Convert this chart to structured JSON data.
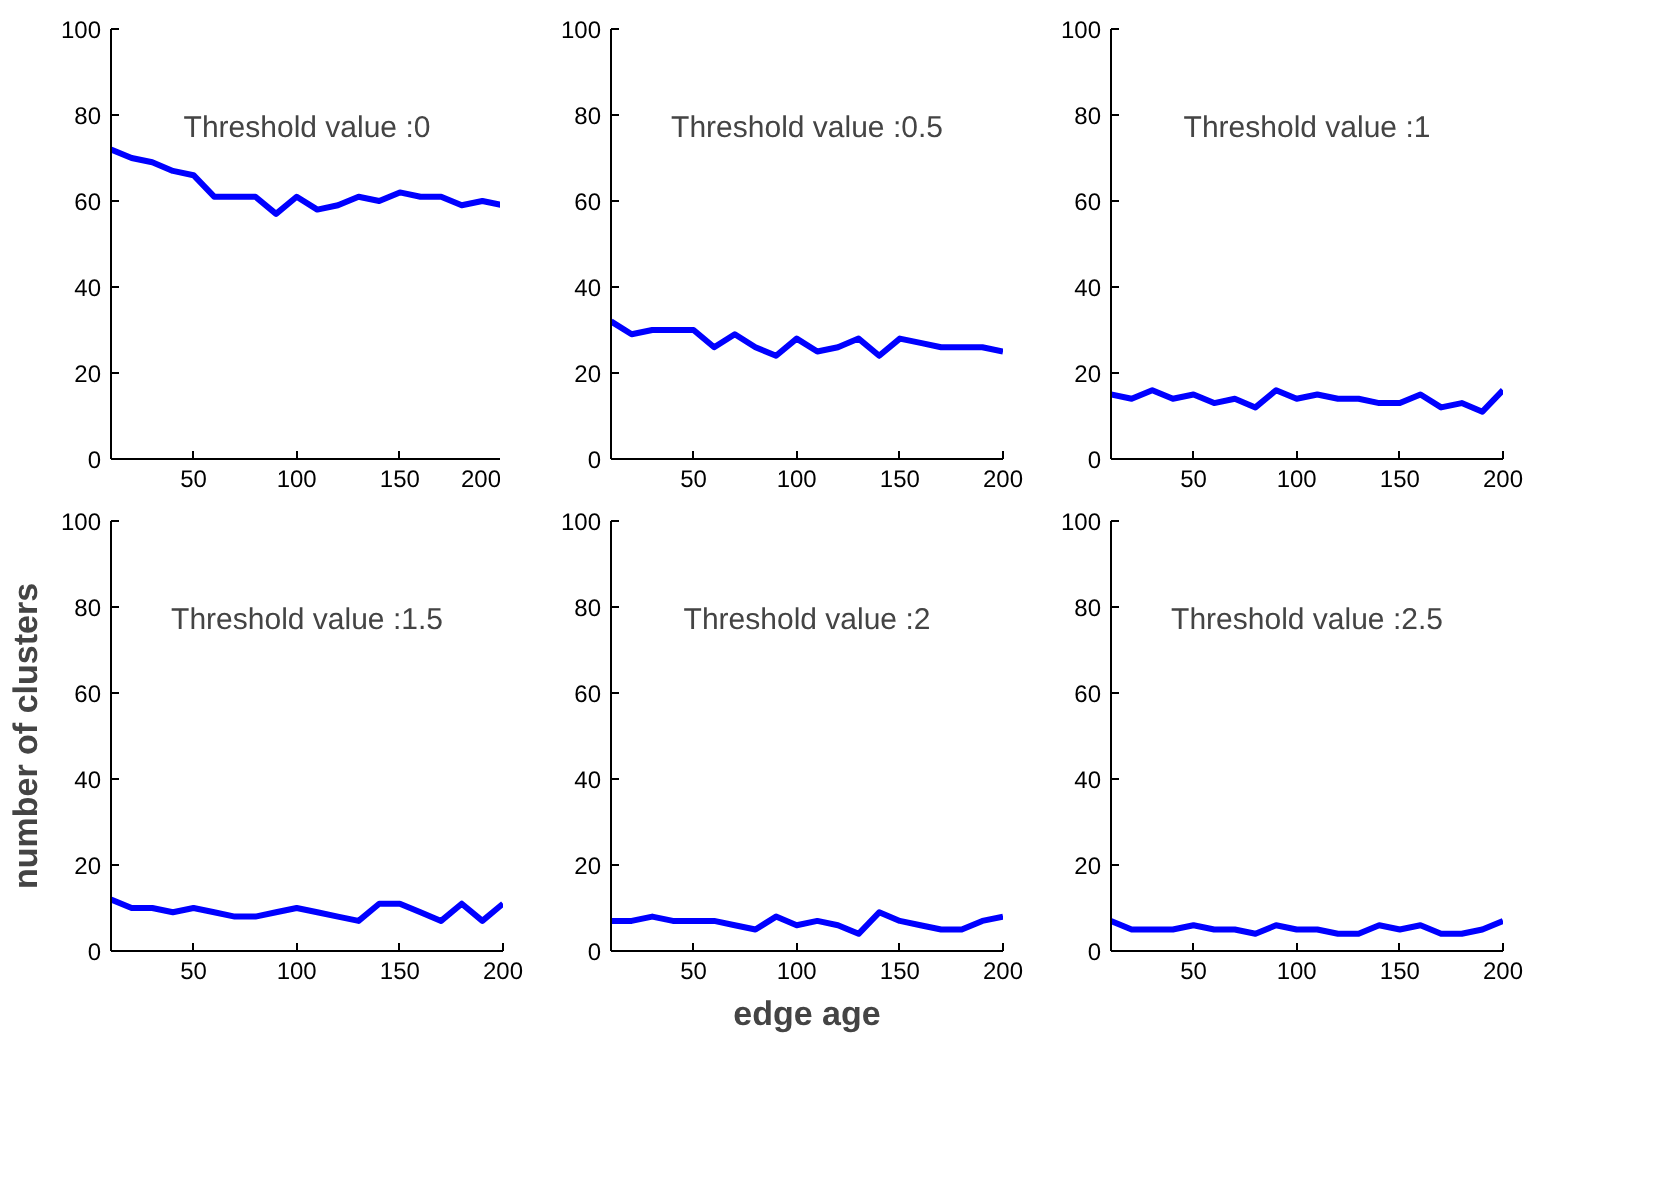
{
  "chart_data": [
    {
      "type": "line",
      "annotations": [
        "Threshold value :0"
      ],
      "x": [
        10,
        20,
        30,
        40,
        50,
        60,
        70,
        80,
        90,
        100,
        110,
        120,
        130,
        140,
        150,
        160,
        170,
        180,
        190,
        200
      ],
      "series": [
        {
          "color": "#0000ff",
          "values": [
            72,
            70,
            69,
            67,
            66,
            61,
            61,
            61,
            57,
            61,
            58,
            59,
            61,
            60,
            62,
            61,
            61,
            59,
            60,
            59
          ]
        }
      ],
      "xlim": [
        10,
        200
      ],
      "ylim": [
        0,
        100
      ],
      "xticks": [
        50,
        100,
        150,
        200
      ],
      "yticks": [
        0,
        20,
        40,
        60,
        80,
        100
      ]
    },
    {
      "type": "line",
      "annotations": [
        "Threshold value :0.5"
      ],
      "x": [
        10,
        20,
        30,
        40,
        50,
        60,
        70,
        80,
        90,
        100,
        110,
        120,
        130,
        140,
        150,
        160,
        170,
        180,
        190,
        200
      ],
      "series": [
        {
          "color": "#0000ff",
          "values": [
            32,
            29,
            30,
            30,
            30,
            26,
            29,
            26,
            24,
            28,
            25,
            26,
            28,
            24,
            28,
            27,
            26,
            26,
            26,
            25
          ]
        }
      ],
      "xlim": [
        10,
        200
      ],
      "ylim": [
        0,
        100
      ],
      "xticks": [
        50,
        100,
        150,
        200
      ],
      "yticks": [
        0,
        20,
        40,
        60,
        80,
        100
      ]
    },
    {
      "type": "line",
      "annotations": [
        "Threshold value :1"
      ],
      "x": [
        10,
        20,
        30,
        40,
        50,
        60,
        70,
        80,
        90,
        100,
        110,
        120,
        130,
        140,
        150,
        160,
        170,
        180,
        190,
        200
      ],
      "series": [
        {
          "color": "#0000ff",
          "values": [
            15,
            14,
            16,
            14,
            15,
            13,
            14,
            12,
            16,
            14,
            15,
            14,
            14,
            13,
            13,
            15,
            12,
            13,
            11,
            16
          ]
        }
      ],
      "xlim": [
        10,
        200
      ],
      "ylim": [
        0,
        100
      ],
      "xticks": [
        50,
        100,
        150,
        200
      ],
      "yticks": [
        0,
        20,
        40,
        60,
        80,
        100
      ]
    },
    {
      "type": "line",
      "ylabel": "number of clusters",
      "annotations": [
        "Threshold value :1.5"
      ],
      "x": [
        10,
        20,
        30,
        40,
        50,
        60,
        70,
        80,
        90,
        100,
        110,
        120,
        130,
        140,
        150,
        160,
        170,
        180,
        190,
        200
      ],
      "series": [
        {
          "color": "#0000ff",
          "values": [
            12,
            10,
            10,
            9,
            10,
            9,
            8,
            8,
            9,
            10,
            9,
            8,
            7,
            11,
            11,
            9,
            7,
            11,
            7,
            11
          ]
        }
      ],
      "xlim": [
        10,
        200
      ],
      "ylim": [
        0,
        100
      ],
      "xticks": [
        50,
        100,
        150,
        200
      ],
      "yticks": [
        0,
        20,
        40,
        60,
        80,
        100
      ]
    },
    {
      "type": "line",
      "xlabel": "edge age",
      "annotations": [
        "Threshold value :2"
      ],
      "x": [
        10,
        20,
        30,
        40,
        50,
        60,
        70,
        80,
        90,
        100,
        110,
        120,
        130,
        140,
        150,
        160,
        170,
        180,
        190,
        200
      ],
      "series": [
        {
          "color": "#0000ff",
          "values": [
            7,
            7,
            8,
            7,
            7,
            7,
            6,
            5,
            8,
            6,
            7,
            6,
            4,
            9,
            7,
            6,
            5,
            5,
            7,
            8
          ]
        }
      ],
      "xlim": [
        10,
        200
      ],
      "ylim": [
        0,
        100
      ],
      "xticks": [
        50,
        100,
        150,
        200
      ],
      "yticks": [
        0,
        20,
        40,
        60,
        80,
        100
      ]
    },
    {
      "type": "line",
      "annotations": [
        "Threshold value :2.5"
      ],
      "x": [
        10,
        20,
        30,
        40,
        50,
        60,
        70,
        80,
        90,
        100,
        110,
        120,
        130,
        140,
        150,
        160,
        170,
        180,
        190,
        200
      ],
      "series": [
        {
          "color": "#0000ff",
          "values": [
            7,
            5,
            5,
            5,
            6,
            5,
            5,
            4,
            6,
            5,
            5,
            4,
            4,
            6,
            5,
            6,
            4,
            4,
            5,
            7
          ]
        }
      ],
      "xlim": [
        10,
        200
      ],
      "ylim": [
        0,
        100
      ],
      "xticks": [
        50,
        100,
        150,
        200
      ],
      "yticks": [
        0,
        20,
        40,
        60,
        80,
        100
      ]
    }
  ]
}
